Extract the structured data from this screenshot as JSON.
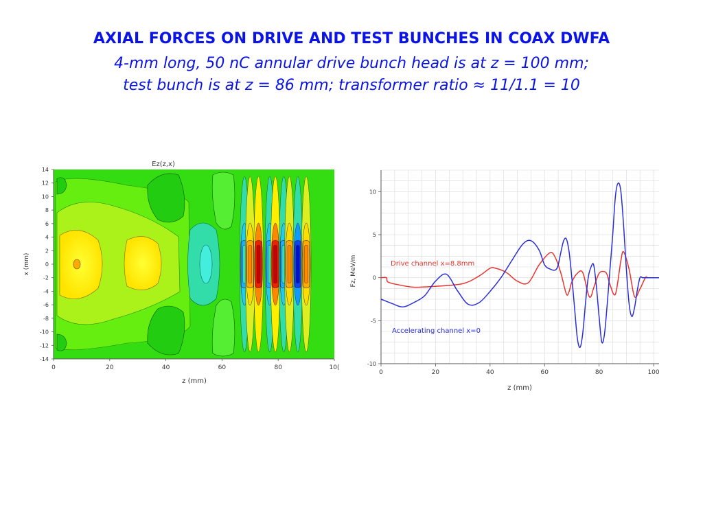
{
  "slide": {
    "title": "AXIAL FORCES ON DRIVE AND TEST BUNCHES IN COAX DWFA",
    "subtitle_line1": "4-mm long, 50 nC annular drive bunch head is at z = 100 mm;",
    "subtitle_line2": "test bunch is at z = 86 mm; transformer ratio ≈ 11/1.1 = 10"
  },
  "colors": {
    "title": "#0a14e6",
    "drive": "#e8332e",
    "accel": "#2a2ed8"
  },
  "chart_data": [
    {
      "type": "heatmap",
      "title": "Ez(z,x)",
      "xlabel": "z (mm)",
      "ylabel": "x (mm)",
      "xlim": [
        0,
        100
      ],
      "ylim": [
        -14,
        14
      ],
      "xticks": [
        "0",
        "20",
        "40",
        "60",
        "80",
        "10("
      ],
      "yticks": [
        "14",
        "12",
        "10",
        "8",
        "6",
        "4",
        "2",
        "0",
        "-2",
        "-4",
        "-6",
        "-8",
        "-10",
        "-12",
        "-14"
      ],
      "colormap": "rainbow contour (blue negative, red positive, green background)",
      "bands": [
        {
          "z": 68,
          "kind": "cyan"
        },
        {
          "z": 70,
          "kind": "orange"
        },
        {
          "z": 73,
          "kind": "red"
        },
        {
          "z": 77,
          "kind": "cyan"
        },
        {
          "z": 79,
          "kind": "red"
        },
        {
          "z": 82,
          "kind": "cyan"
        },
        {
          "z": 84,
          "kind": "orange"
        },
        {
          "z": 87,
          "kind": "blue"
        },
        {
          "z": 90,
          "kind": "orange"
        }
      ]
    },
    {
      "type": "line",
      "xlabel": "z (mm)",
      "ylabel": "Fz, MeV/m",
      "xlim": [
        0,
        102
      ],
      "ylim": [
        -10,
        12.5
      ],
      "xticks": [
        "0",
        "20",
        "40",
        "60",
        "80",
        "100"
      ],
      "yticks": [
        "10",
        "5",
        "0",
        "-5",
        "-10"
      ],
      "grid": true,
      "series": [
        {
          "name": "Drive channel x=8.8mm",
          "color": "#e8332e",
          "x": [
            0,
            2,
            2.5,
            6,
            12,
            20,
            30,
            36,
            40,
            42,
            46,
            50,
            54,
            58,
            62,
            64,
            66,
            68,
            69,
            70,
            72,
            74,
            76,
            77,
            78,
            80,
            82,
            83,
            84,
            86,
            88,
            89,
            91,
            93,
            95,
            97,
            98,
            102
          ],
          "y": [
            0,
            0,
            -0.5,
            -0.8,
            -1.1,
            -1.0,
            -0.7,
            0.2,
            1.1,
            1.1,
            0.6,
            -0.4,
            -0.6,
            1.5,
            2.9,
            2.3,
            0.5,
            -1.9,
            -1.6,
            -0.5,
            0.5,
            0.6,
            -1.9,
            -2.2,
            -1.2,
            0.5,
            0.7,
            0.3,
            -0.8,
            -1.9,
            2.0,
            3.0,
            1.0,
            -2.2,
            -1.3,
            0,
            0,
            0
          ]
        },
        {
          "name": "Accelerating channel x=0",
          "color": "#2a2ed8",
          "x": [
            0,
            4,
            8,
            12,
            16,
            20,
            24,
            28,
            32,
            36,
            40,
            44,
            48,
            52,
            55,
            58,
            60,
            62,
            64,
            65,
            66,
            67,
            68,
            69,
            70,
            71,
            72,
            73,
            74,
            75,
            76,
            77,
            78,
            79,
            80,
            81,
            82,
            83,
            84,
            85,
            86,
            87,
            88,
            89,
            90,
            91,
            92,
            93,
            94,
            95,
            96,
            98,
            102
          ],
          "y": [
            -2.5,
            -3.0,
            -3.4,
            -2.9,
            -2.1,
            -0.4,
            0.4,
            -1.5,
            -3.1,
            -2.9,
            -1.6,
            0,
            2.0,
            3.9,
            4.3,
            3.2,
            1.5,
            1.0,
            0.9,
            1.5,
            3.0,
            4.3,
            4.5,
            3.0,
            0,
            -3.5,
            -7.0,
            -8.1,
            -6.5,
            -3.0,
            0,
            1.2,
            1.5,
            -1.0,
            -4.5,
            -7.5,
            -6.5,
            -3.0,
            1.0,
            5.0,
            9.5,
            11.0,
            10.0,
            6.0,
            1.0,
            -3.0,
            -4.5,
            -3.5,
            -1.5,
            0,
            0,
            0,
            0
          ]
        }
      ]
    }
  ]
}
